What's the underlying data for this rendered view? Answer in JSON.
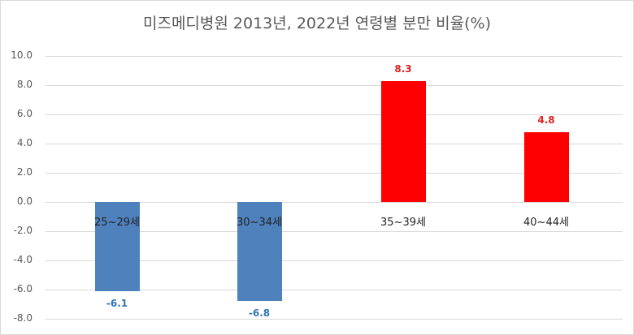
{
  "chart_data": {
    "type": "bar",
    "title": "미즈메디병원 2013년, 2022년 연령별 분만 비율(%)",
    "categories": [
      "25~29세",
      "30~34세",
      "35~39세",
      "40~44세"
    ],
    "values": [
      -6.1,
      -6.8,
      8.3,
      4.8
    ],
    "data_labels": [
      "-6.1",
      "-6.8",
      "8.3",
      "4.8"
    ],
    "colors": [
      "#4f81bd",
      "#4f81bd",
      "#ff0000",
      "#ff0000"
    ],
    "label_colors": [
      "#2e75b6",
      "#2e75b6",
      "#e02020",
      "#e02020"
    ],
    "xlabel": "",
    "ylabel": "",
    "ylim": [
      -8,
      10
    ],
    "yticks": [
      "10.0",
      "8.0",
      "6.0",
      "4.0",
      "2.0",
      "0.0",
      "-2.0",
      "-4.0",
      "-6.0",
      "-8.0"
    ],
    "grid": true,
    "legend": null
  }
}
